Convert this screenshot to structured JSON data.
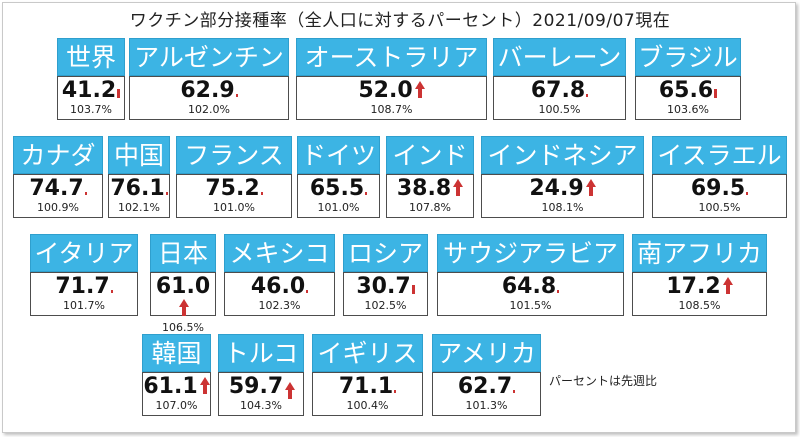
{
  "title": "ワクチン部分接種率（全人口に対するパーセント）2021/09/07現在",
  "note": "パーセントは先週比",
  "colors": {
    "header": "#3cb4e4",
    "arrow": "#cc3333"
  },
  "cards": [
    {
      "name": "世界",
      "value": "41.2",
      "pct": "103.7%",
      "trend": "small-up-icon"
    },
    {
      "name": "アルゼンチン",
      "value": "62.9",
      "pct": "102.0%",
      "trend": "tiny-up-icon"
    },
    {
      "name": "オーストラリア",
      "value": "52.0",
      "pct": "108.7%",
      "trend": "up-arrow-icon"
    },
    {
      "name": "バーレーン",
      "value": "67.8",
      "pct": "100.5%",
      "trend": "dot-icon"
    },
    {
      "name": "ブラジル",
      "value": "65.6",
      "pct": "103.6%",
      "trend": "small-up-icon"
    },
    {
      "name": "カナダ",
      "value": "74.7",
      "pct": "100.9%",
      "trend": "dot-icon"
    },
    {
      "name": "中国",
      "value": "76.1",
      "pct": "102.1%",
      "trend": "tiny-up-icon"
    },
    {
      "name": "フランス",
      "value": "75.2",
      "pct": "101.0%",
      "trend": "dot-icon"
    },
    {
      "name": "ドイツ",
      "value": "65.5",
      "pct": "101.0%",
      "trend": "dot-icon"
    },
    {
      "name": "インド",
      "value": "38.8",
      "pct": "107.8%",
      "trend": "up-arrow-icon"
    },
    {
      "name": "インドネシア",
      "value": "24.9",
      "pct": "108.1%",
      "trend": "up-arrow-icon"
    },
    {
      "name": "イスラエル",
      "value": "69.5",
      "pct": "100.5%",
      "trend": "dot-icon"
    },
    {
      "name": "イタリア",
      "value": "71.7",
      "pct": "101.7%",
      "trend": "dot-icon"
    },
    {
      "name": "日本",
      "value": "61.0",
      "pct": "106.5%",
      "trend": "up-arrow-icon"
    },
    {
      "name": "メキシコ",
      "value": "46.0",
      "pct": "102.3%",
      "trend": "tiny-up-icon"
    },
    {
      "name": "ロシア",
      "value": "30.7",
      "pct": "102.5%",
      "trend": "small-up-icon"
    },
    {
      "name": "サウジアラビア",
      "value": "64.8",
      "pct": "101.5%",
      "trend": "dot-icon"
    },
    {
      "name": "南アフリカ",
      "value": "17.2",
      "pct": "108.5%",
      "trend": "up-arrow-icon"
    },
    {
      "name": "韓国",
      "value": "61.1",
      "pct": "107.0%",
      "trend": "up-arrow-icon"
    },
    {
      "name": "トルコ",
      "value": "59.7",
      "pct": "104.3%",
      "trend": "up-arrow-icon"
    },
    {
      "name": "イギリス",
      "value": "71.1",
      "pct": "100.4%",
      "trend": "dot-icon"
    },
    {
      "name": "アメリカ",
      "value": "62.7",
      "pct": "101.3%",
      "trend": "tiny-up-icon"
    }
  ]
}
